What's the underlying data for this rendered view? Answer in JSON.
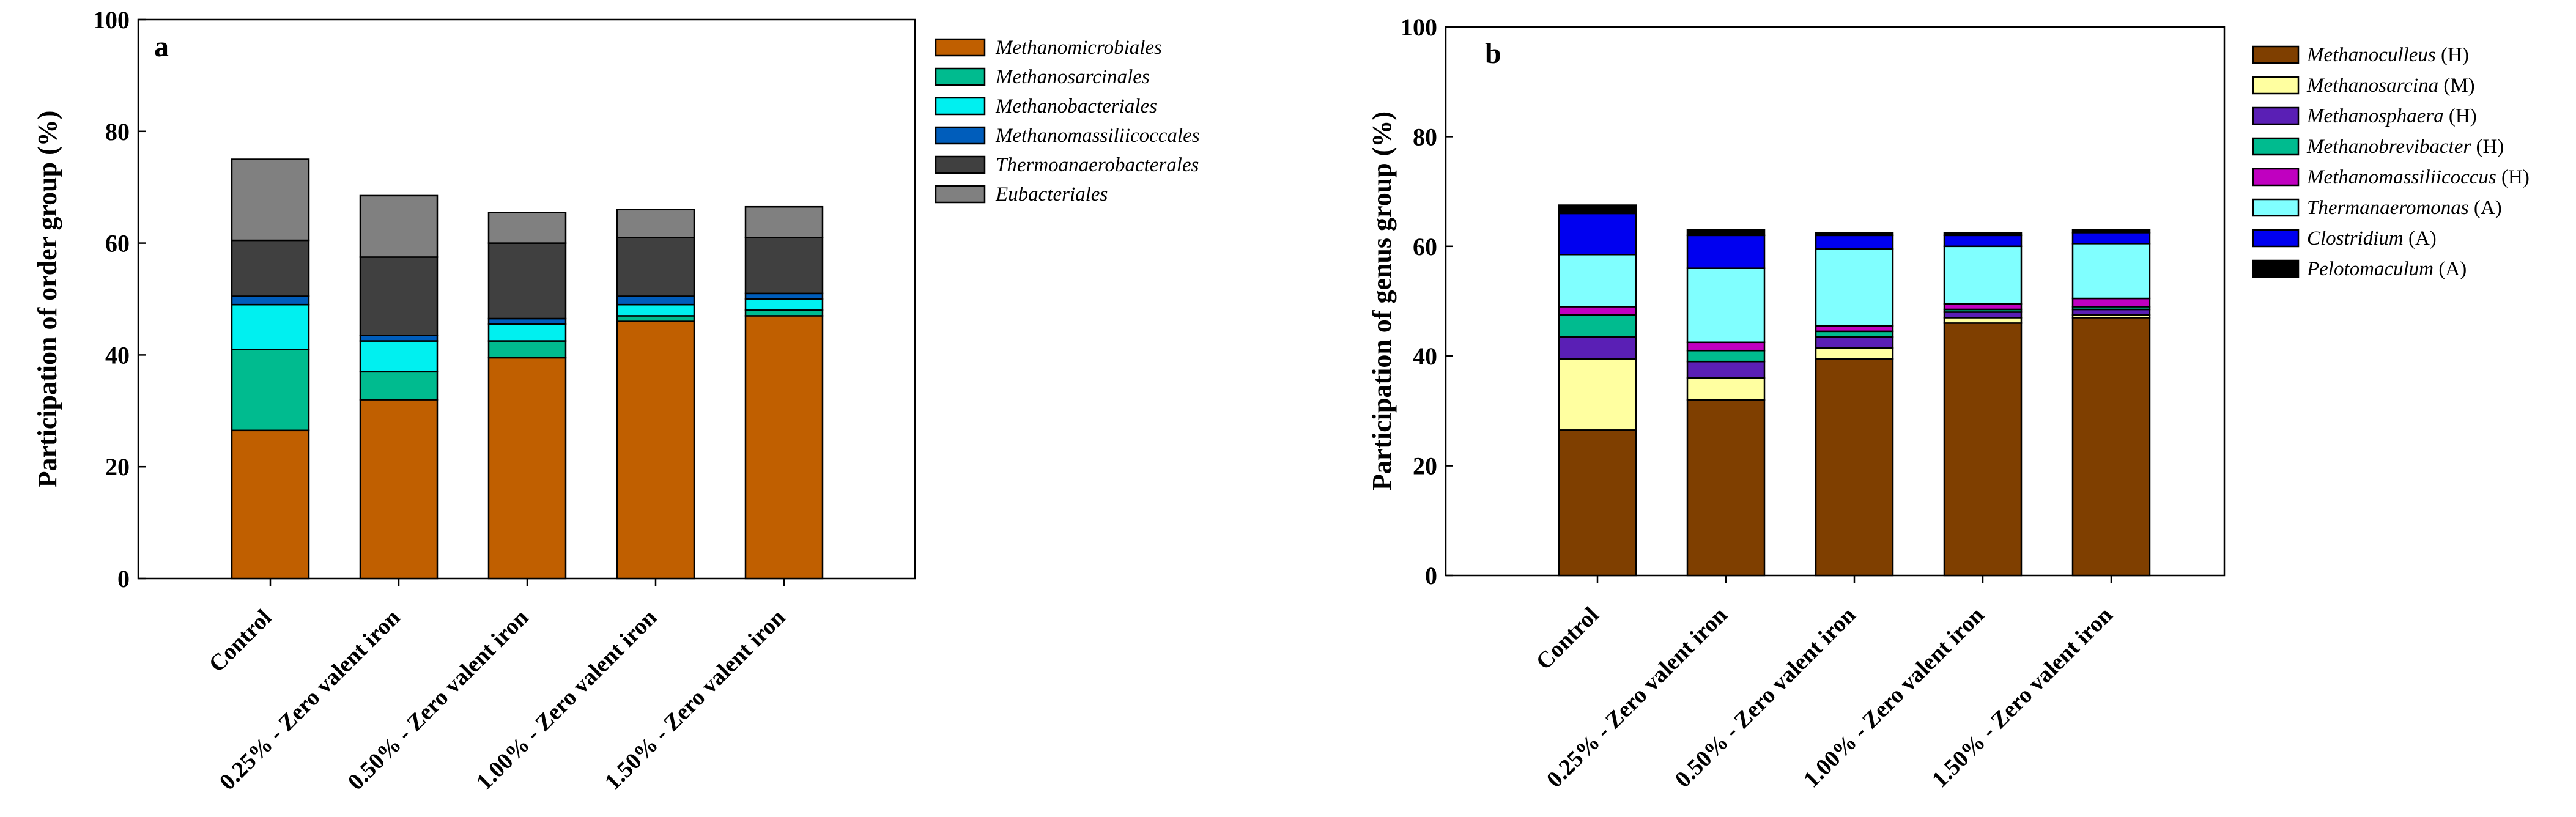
{
  "chart_data": [
    {
      "type": "bar",
      "stacked": true,
      "panel": "a",
      "ylabel": "Participation of order group (%)",
      "xlabel": "",
      "ylim": [
        0,
        100
      ],
      "yticks": [
        0,
        20,
        40,
        60,
        80,
        100
      ],
      "categories": [
        "Control",
        "0.25% - Zero valent iron",
        "0.50% - Zero valent iron",
        "1.00% - Zero valent iron",
        "1.50% - Zero valent iron"
      ],
      "legend_position": "right",
      "series": [
        {
          "name": "Methanomicrobiales",
          "suffix": "",
          "color": "#C05F00",
          "values": [
            26.5,
            32,
            39.5,
            46,
            47
          ]
        },
        {
          "name": "Methanosarcinales",
          "suffix": "",
          "color": "#00BB8F",
          "values": [
            14.5,
            5,
            3,
            1,
            1
          ]
        },
        {
          "name": "Methanobacteriales",
          "suffix": "",
          "color": "#00F0F0",
          "values": [
            8,
            5.5,
            3,
            2,
            2
          ]
        },
        {
          "name": "Methanomassiliicoccales",
          "suffix": "",
          "color": "#005DBB",
          "values": [
            1.5,
            1,
            1,
            1.5,
            1
          ]
        },
        {
          "name": "Thermoanaerobacterales",
          "suffix": "",
          "color": "#404040",
          "values": [
            10,
            14,
            13.5,
            10.5,
            10
          ]
        },
        {
          "name": "Eubacteriales",
          "suffix": "",
          "color": "#808080",
          "values": [
            14.5,
            11,
            5.5,
            5,
            5.5
          ]
        }
      ]
    },
    {
      "type": "bar",
      "stacked": true,
      "panel": "b",
      "ylabel": "Participation of genus group (%)",
      "xlabel": "",
      "ylim": [
        0,
        100
      ],
      "yticks": [
        0,
        20,
        40,
        60,
        80,
        100
      ],
      "categories": [
        "Control",
        "0.25% - Zero valent iron",
        "0.50% - Zero valent iron",
        "1.00% - Zero valent iron",
        "1.50% - Zero valent iron"
      ],
      "legend_position": "right",
      "series": [
        {
          "name": "Methanoculleus",
          "suffix": " (H)",
          "color": "#7F3F00",
          "values": [
            26.5,
            32,
            39.5,
            46,
            47
          ]
        },
        {
          "name": "Methanosarcina",
          "suffix": " (M)",
          "color": "#FFFFA0",
          "values": [
            13,
            4,
            2,
            1,
            0.5
          ]
        },
        {
          "name": "Methanosphaera",
          "suffix": " (H)",
          "color": "#5A1FB5",
          "values": [
            4,
            3,
            2,
            1,
            1
          ]
        },
        {
          "name": "Methanobrevibacter",
          "suffix": " (H)",
          "color": "#00BB8F",
          "values": [
            4,
            2,
            1,
            0.5,
            0.5
          ]
        },
        {
          "name": "Methanomassiliicoccus",
          "suffix": " (H)",
          "color": "#C000C0",
          "values": [
            1.5,
            1.5,
            1,
            1,
            1.5
          ]
        },
        {
          "name": "Thermanaeromonas",
          "suffix": " (A)",
          "color": "#80FFFF",
          "values": [
            9.5,
            13.5,
            14,
            10.5,
            10
          ]
        },
        {
          "name": "Clostridium",
          "suffix": " (A)",
          "color": "#0000F0",
          "values": [
            7.5,
            6,
            2.5,
            2,
            2
          ]
        },
        {
          "name": "Pelotomaculum",
          "suffix": " (A)",
          "color": "#000000",
          "values": [
            1.5,
            1,
            0.5,
            0.5,
            0.5
          ]
        }
      ]
    }
  ]
}
